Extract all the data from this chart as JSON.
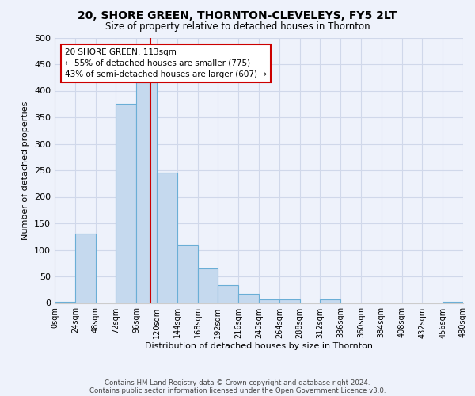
{
  "title": "20, SHORE GREEN, THORNTON-CLEVELEYS, FY5 2LT",
  "subtitle": "Size of property relative to detached houses in Thornton",
  "xlabel": "Distribution of detached houses by size in Thornton",
  "ylabel": "Number of detached properties",
  "bar_color": "#c5d9ee",
  "bar_edge_color": "#6aaed6",
  "background_color": "#eef2fb",
  "grid_color": "#d0d8ea",
  "bin_edges": [
    0,
    24,
    48,
    72,
    96,
    120,
    144,
    168,
    192,
    216,
    240,
    264,
    288,
    312,
    336,
    360,
    384,
    408,
    432,
    456,
    480
  ],
  "bar_heights": [
    2,
    130,
    0,
    375,
    415,
    245,
    110,
    65,
    33,
    17,
    6,
    6,
    0,
    6,
    0,
    0,
    0,
    0,
    0,
    2
  ],
  "red_line_x": 113,
  "ylim": [
    0,
    500
  ],
  "annotation_text": "20 SHORE GREEN: 113sqm\n← 55% of detached houses are smaller (775)\n43% of semi-detached houses are larger (607) →",
  "annotation_box_color": "#ffffff",
  "annotation_box_edge_color": "#cc0000",
  "footnote1": "Contains HM Land Registry data © Crown copyright and database right 2024.",
  "footnote2": "Contains public sector information licensed under the Open Government Licence v3.0.",
  "tick_labels": [
    "0sqm",
    "24sqm",
    "48sqm",
    "72sqm",
    "96sqm",
    "120sqm",
    "144sqm",
    "168sqm",
    "192sqm",
    "216sqm",
    "240sqm",
    "264sqm",
    "288sqm",
    "312sqm",
    "336sqm",
    "360sqm",
    "384sqm",
    "408sqm",
    "432sqm",
    "456sqm",
    "480sqm"
  ],
  "yticks": [
    0,
    50,
    100,
    150,
    200,
    250,
    300,
    350,
    400,
    450,
    500
  ]
}
